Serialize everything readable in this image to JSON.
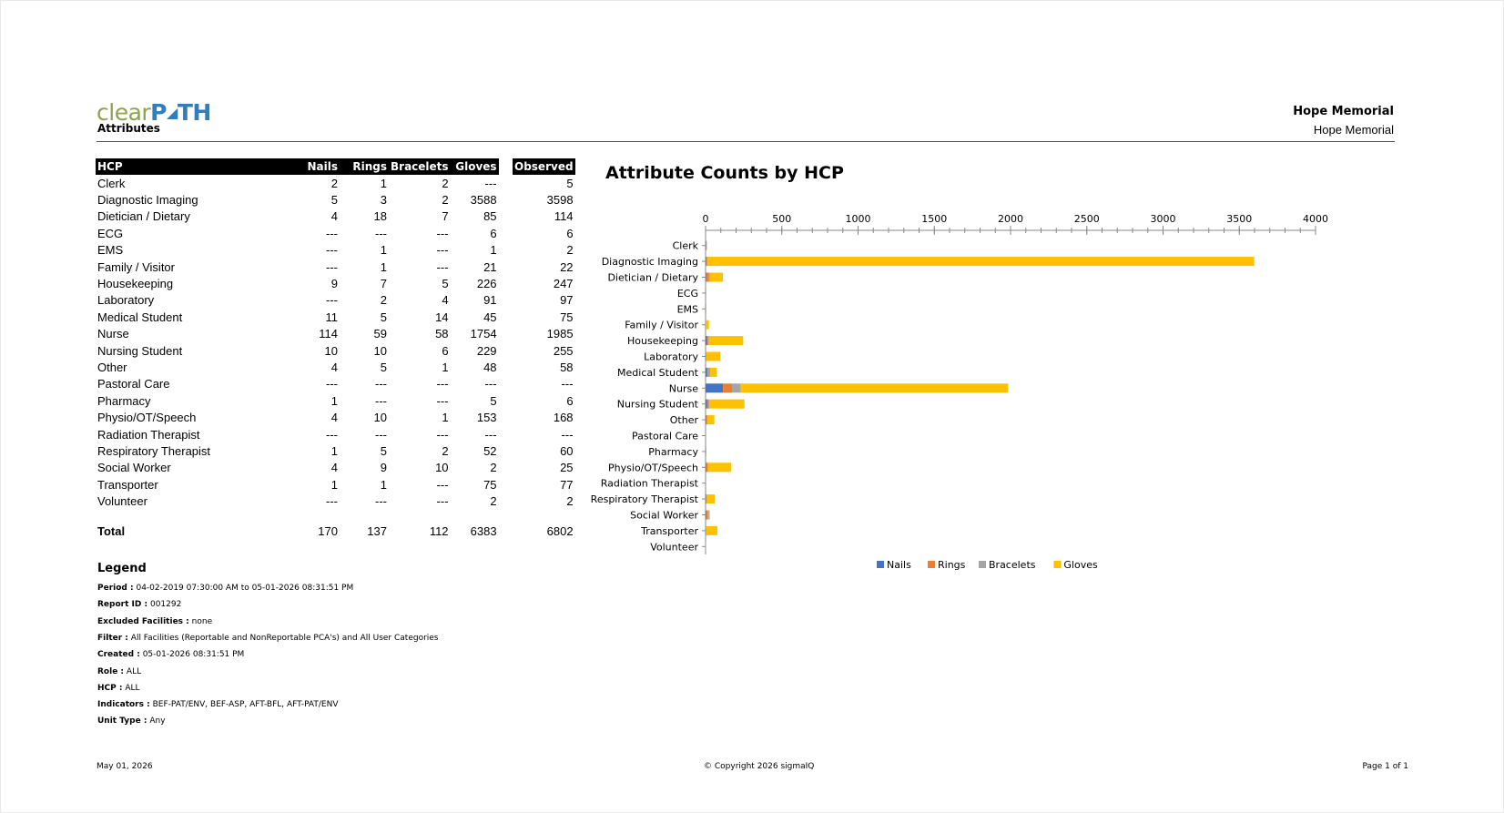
{
  "header": {
    "logo_part1": "clear",
    "logo_part2": "P",
    "logo_part3": "TH",
    "report_name": "Attributes",
    "facility_bold": "Hope Memorial",
    "facility_sub": "Hope Memorial"
  },
  "table": {
    "headers": [
      "HCP",
      "Nails",
      "Rings",
      "Bracelets",
      "Gloves"
    ],
    "observed_header": "Observed",
    "rows": [
      {
        "hcp": "Clerk",
        "nails": "2",
        "rings": "1",
        "bracelets": "2",
        "gloves": "---",
        "observed": "5"
      },
      {
        "hcp": "Diagnostic Imaging",
        "nails": "5",
        "rings": "3",
        "bracelets": "2",
        "gloves": "3588",
        "observed": "3598"
      },
      {
        "hcp": "Dietician / Dietary",
        "nails": "4",
        "rings": "18",
        "bracelets": "7",
        "gloves": "85",
        "observed": "114"
      },
      {
        "hcp": "ECG",
        "nails": "---",
        "rings": "---",
        "bracelets": "---",
        "gloves": "6",
        "observed": "6"
      },
      {
        "hcp": "EMS",
        "nails": "---",
        "rings": "1",
        "bracelets": "---",
        "gloves": "1",
        "observed": "2"
      },
      {
        "hcp": "Family / Visitor",
        "nails": "---",
        "rings": "1",
        "bracelets": "---",
        "gloves": "21",
        "observed": "22"
      },
      {
        "hcp": "Housekeeping",
        "nails": "9",
        "rings": "7",
        "bracelets": "5",
        "gloves": "226",
        "observed": "247"
      },
      {
        "hcp": "Laboratory",
        "nails": "---",
        "rings": "2",
        "bracelets": "4",
        "gloves": "91",
        "observed": "97"
      },
      {
        "hcp": "Medical Student",
        "nails": "11",
        "rings": "5",
        "bracelets": "14",
        "gloves": "45",
        "observed": "75"
      },
      {
        "hcp": "Nurse",
        "nails": "114",
        "rings": "59",
        "bracelets": "58",
        "gloves": "1754",
        "observed": "1985"
      },
      {
        "hcp": "Nursing Student",
        "nails": "10",
        "rings": "10",
        "bracelets": "6",
        "gloves": "229",
        "observed": "255"
      },
      {
        "hcp": "Other",
        "nails": "4",
        "rings": "5",
        "bracelets": "1",
        "gloves": "48",
        "observed": "58"
      },
      {
        "hcp": "Pastoral Care",
        "nails": "---",
        "rings": "---",
        "bracelets": "---",
        "gloves": "---",
        "observed": "---"
      },
      {
        "hcp": "Pharmacy",
        "nails": "1",
        "rings": "---",
        "bracelets": "---",
        "gloves": "5",
        "observed": "6"
      },
      {
        "hcp": "Physio/OT/Speech",
        "nails": "4",
        "rings": "10",
        "bracelets": "1",
        "gloves": "153",
        "observed": "168"
      },
      {
        "hcp": "Radiation Therapist",
        "nails": "---",
        "rings": "---",
        "bracelets": "---",
        "gloves": "---",
        "observed": "---"
      },
      {
        "hcp": "Respiratory Therapist",
        "nails": "1",
        "rings": "5",
        "bracelets": "2",
        "gloves": "52",
        "observed": "60"
      },
      {
        "hcp": "Social Worker",
        "nails": "4",
        "rings": "9",
        "bracelets": "10",
        "gloves": "2",
        "observed": "25"
      },
      {
        "hcp": "Transporter",
        "nails": "1",
        "rings": "1",
        "bracelets": "---",
        "gloves": "75",
        "observed": "77"
      },
      {
        "hcp": "Volunteer",
        "nails": "---",
        "rings": "---",
        "bracelets": "---",
        "gloves": "2",
        "observed": "2"
      }
    ],
    "total": {
      "hcp": "Total",
      "nails": "170",
      "rings": "137",
      "bracelets": "112",
      "gloves": "6383",
      "observed": "6802"
    }
  },
  "legend": {
    "title": "Legend",
    "lines": [
      {
        "label": "Period :",
        "value": "04-02-2019 07:30:00 AM to 05-01-2026 08:31:51 PM"
      },
      {
        "label": "Report ID :",
        "value": "001292"
      },
      {
        "label": "Excluded Facilities :",
        "value": "none"
      },
      {
        "label": "Filter :",
        "value": "All Facilities (Reportable and NonReportable PCA's) and All User Categories"
      },
      {
        "label": "Created :",
        "value": "05-01-2026 08:31:51 PM"
      },
      {
        "label": "Role :",
        "value": "ALL"
      },
      {
        "label": "HCP :",
        "value": "ALL"
      },
      {
        "label": "Indicators :",
        "value": "BEF-PAT/ENV, BEF-ASP, AFT-BFL, AFT-PAT/ENV"
      },
      {
        "label": "Unit Type :",
        "value": "Any"
      }
    ]
  },
  "footer": {
    "date": "May 01, 2026",
    "copyright": "© Copyright 2026 sigmaIQ",
    "page": "Page 1 of 1"
  },
  "chart_data": {
    "type": "bar",
    "orientation": "horizontal",
    "stacked": true,
    "title": "Attribute Counts by HCP",
    "categories": [
      "Clerk",
      "Diagnostic Imaging",
      "Dietician / Dietary",
      "ECG",
      "EMS",
      "Family / Visitor",
      "Housekeeping",
      "Laboratory",
      "Medical Student",
      "Nurse",
      "Nursing Student",
      "Other",
      "Pastoral Care",
      "Pharmacy",
      "Physio/OT/Speech",
      "Radiation Therapist",
      "Respiratory Therapist",
      "Social Worker",
      "Transporter",
      "Volunteer"
    ],
    "series": [
      {
        "name": "Nails",
        "color": "#4472c4",
        "values": [
          2,
          5,
          4,
          0,
          0,
          0,
          9,
          0,
          11,
          114,
          10,
          4,
          0,
          1,
          4,
          0,
          1,
          4,
          1,
          0
        ]
      },
      {
        "name": "Rings",
        "color": "#ed7d31",
        "values": [
          1,
          3,
          18,
          0,
          1,
          1,
          7,
          2,
          5,
          59,
          10,
          5,
          0,
          0,
          10,
          0,
          5,
          9,
          1,
          0
        ]
      },
      {
        "name": "Bracelets",
        "color": "#a5a5a5",
        "values": [
          2,
          2,
          7,
          0,
          0,
          0,
          5,
          4,
          14,
          58,
          6,
          1,
          0,
          0,
          1,
          0,
          2,
          10,
          0,
          0
        ]
      },
      {
        "name": "Gloves",
        "color": "#ffc000",
        "values": [
          0,
          3588,
          85,
          6,
          1,
          21,
          226,
          91,
          45,
          1754,
          229,
          48,
          0,
          5,
          153,
          0,
          52,
          2,
          75,
          2
        ]
      }
    ],
    "xlim": [
      0,
      4000
    ],
    "xticks": [
      0,
      500,
      1000,
      1500,
      2000,
      2500,
      3000,
      3500,
      4000
    ],
    "axis_position": "top",
    "legend_position": "bottom"
  }
}
